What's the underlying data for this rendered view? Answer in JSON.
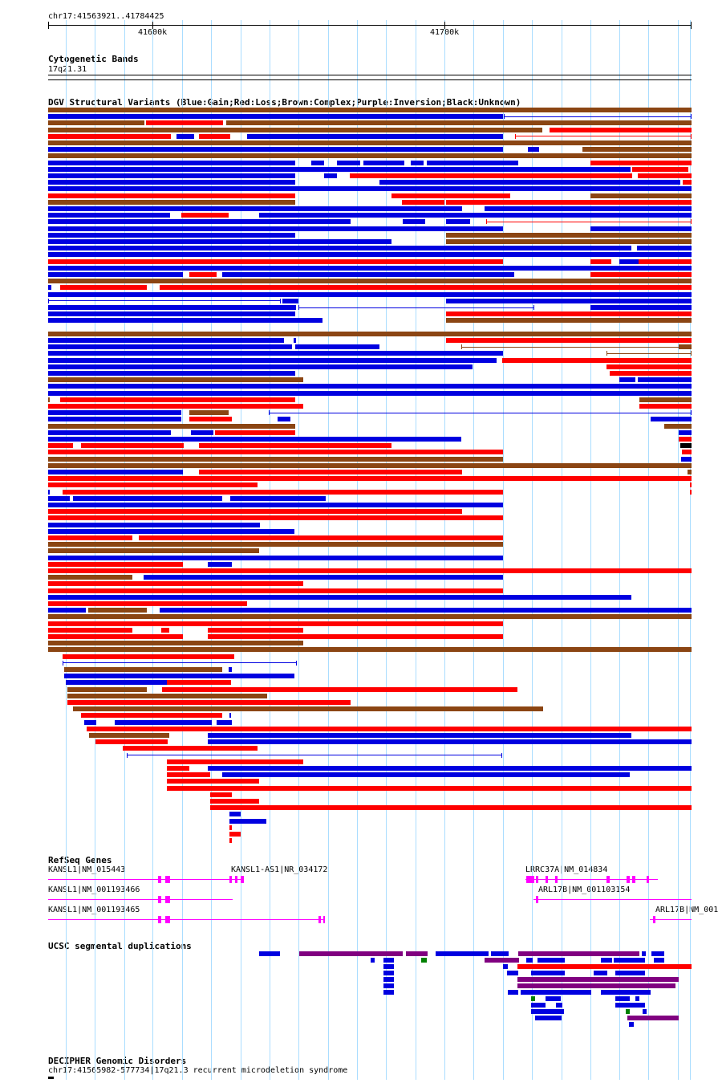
{
  "ruler": {
    "locus": "chr17:41563921..41784425",
    "ticks": [
      "41600k",
      "41700k"
    ]
  },
  "tracks": {
    "cytoband": {
      "title": "Cytogenetic Bands",
      "band": "17q21.31"
    },
    "dgv": {
      "title": "DGV Structural Variants (Blue:Gain;Red:Loss;Brown:Complex;Purple:Inversion;Black:Unknown)"
    },
    "refseq": {
      "title": "RefSeq Genes",
      "genes": [
        {
          "label": "KANSL1|NM_015443"
        },
        {
          "label": "KANSL1-AS1|NR_034172"
        },
        {
          "label": "LRRC37A|NM_014834"
        },
        {
          "label": "KANSL1|NM_001193466"
        },
        {
          "label": "ARL17B|NM_001103154"
        },
        {
          "label": "KANSL1|NM_001193465"
        },
        {
          "label": "ARL17B|NM_001"
        }
      ]
    },
    "segdup": {
      "title": "UCSC segmental duplications"
    },
    "decipher": {
      "title": "DECIPHER Genomic Disorders",
      "feature": "chr17:41565982-577734|17q21.3 recurrent microdeletion syndrome"
    }
  },
  "colors": {
    "gain": "#0000e0",
    "loss": "#ff0000",
    "complex": "#8b4513",
    "inversion": "#800080",
    "unknown": "#000000",
    "gene": "#ff00ff",
    "segdup_green": "#008000",
    "grid": "#aaddff"
  }
}
